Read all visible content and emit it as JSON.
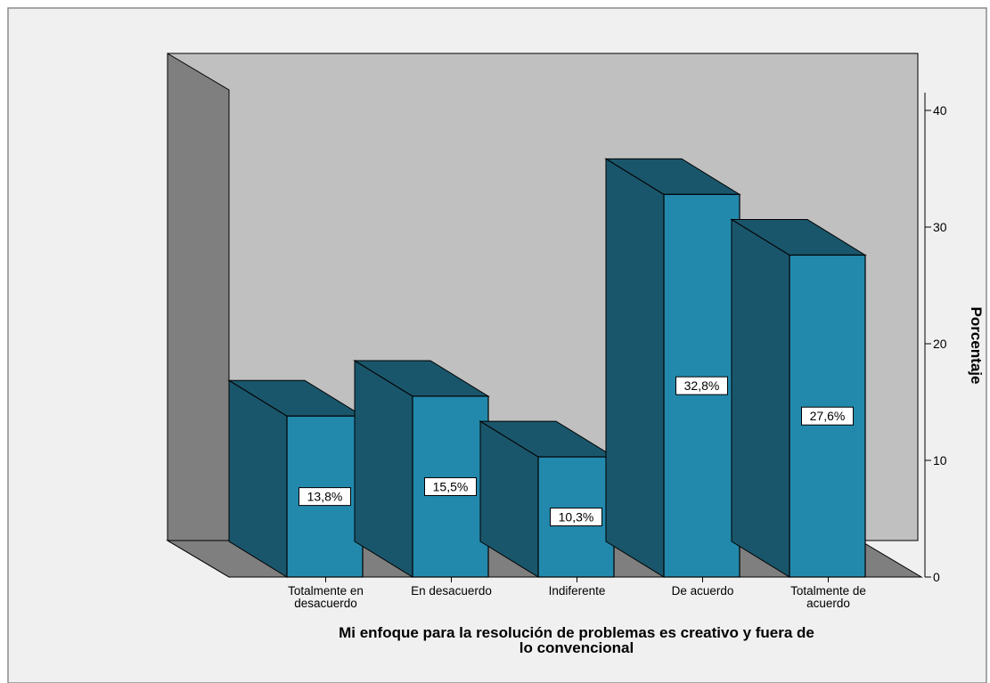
{
  "chart_data": {
    "type": "bar",
    "categories": [
      "Totalmente en desacuerdo",
      "En desacuerdo",
      "Indiferente",
      "De acuerdo",
      "Totalmente de acuerdo"
    ],
    "category_label_lines": [
      [
        "Totalmente en",
        "desacuerdo"
      ],
      [
        "En desacuerdo"
      ],
      [
        "Indiferente"
      ],
      [
        "De acuerdo"
      ],
      [
        "Totalmente de",
        "acuerdo"
      ]
    ],
    "values": [
      13.8,
      15.5,
      10.3,
      32.8,
      27.6
    ],
    "data_labels": [
      "13,8%",
      "15,5%",
      "10,3%",
      "32,8%",
      "27,6%"
    ],
    "xlabel_lines": [
      "Mi enfoque para la resolución de problemas es creativo y fuera de",
      "lo convencional"
    ],
    "ylabel": "Porcentaje",
    "yticks": [
      0,
      10,
      20,
      30,
      40
    ],
    "ylim": [
      0,
      40
    ],
    "style": "3d",
    "colors": {
      "bar_front": "#2389ac",
      "bar_side": "#1a566b",
      "back_wall": "#c0c0c0",
      "left_wall": "#7f7f7f",
      "floor": "#7f7f7f",
      "background": "#f0f0f0"
    }
  }
}
